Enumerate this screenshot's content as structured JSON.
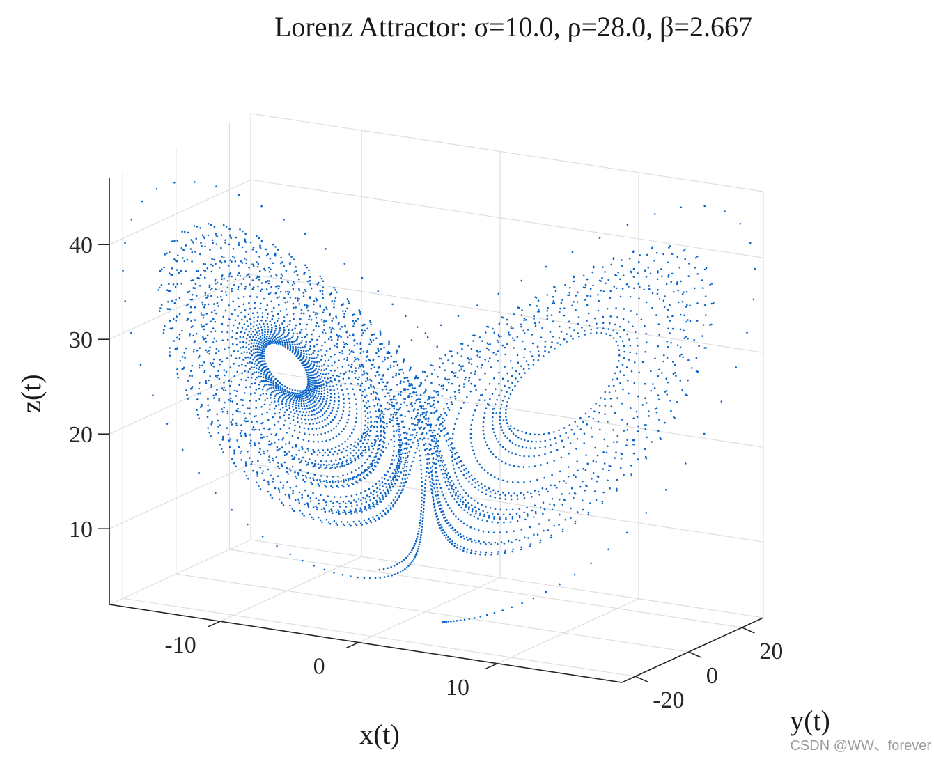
{
  "chart_data": {
    "type": "scatter",
    "projection": "3d",
    "title": "Lorenz Attractor: σ=10.0, ρ=28.0, β=2.667",
    "xlabel": "x(t)",
    "ylabel": "y(t)",
    "zlabel": "z(t)",
    "xlim": [
      -18,
      19
    ],
    "ylim": [
      -25,
      28
    ],
    "zlim": [
      2,
      47
    ],
    "x_ticks": [
      -10,
      0,
      10
    ],
    "x_tick_labels": [
      "-10",
      "0",
      "10"
    ],
    "y_ticks": [
      -20,
      0,
      20
    ],
    "y_tick_labels": [
      "-20",
      "0",
      "20"
    ],
    "z_ticks": [
      10,
      20,
      30,
      40
    ],
    "z_tick_labels": [
      "10",
      "20",
      "30",
      "40"
    ],
    "grid": true,
    "marker": "point",
    "point_color": "#0a64c8",
    "parameters": {
      "sigma": 10.0,
      "rho": 28.0,
      "beta": 2.667
    },
    "initial_state": [
      1,
      1,
      1
    ]
  },
  "watermark": "CSDN @WW、forever"
}
